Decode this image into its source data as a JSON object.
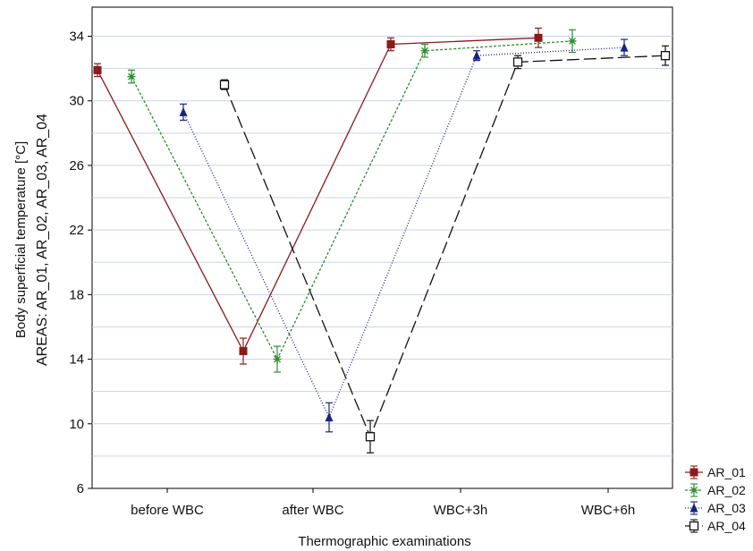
{
  "chart_data": {
    "type": "line",
    "ylabel_line1": "Body superficial temperature [°C]",
    "ylabel_line2": "AREAS: AR_01, AR_02, AR_03, AR_04",
    "xlabel": "Thermographic examinations",
    "categories": [
      "before WBC",
      "after WBC",
      "WBC+3h",
      "WBC+6h"
    ],
    "yticks": [
      6,
      10,
      14,
      18,
      22,
      26,
      30,
      34
    ],
    "ylim": [
      6,
      35.8
    ],
    "grid": true,
    "legend_position": "bottom-right",
    "series": [
      {
        "name": "AR_01",
        "values": [
          31.9,
          14.5,
          33.5,
          33.9
        ],
        "err": [
          0.4,
          0.8,
          0.4,
          0.6
        ],
        "color": "#8b1a1a",
        "dash": "",
        "marker": "square-filled"
      },
      {
        "name": "AR_02",
        "values": [
          31.5,
          14.0,
          33.1,
          33.7
        ],
        "err": [
          0.4,
          0.8,
          0.4,
          0.7
        ],
        "color": "#2e8b2e",
        "dash": "3,2",
        "marker": "star"
      },
      {
        "name": "AR_03",
        "values": [
          29.3,
          10.4,
          32.8,
          33.3
        ],
        "err": [
          0.5,
          0.9,
          0.3,
          0.5
        ],
        "color": "#1a237e",
        "dash": "1,2",
        "marker": "triangle-filled"
      },
      {
        "name": "AR_04",
        "values": [
          31.0,
          9.2,
          32.4,
          32.8
        ],
        "err": [
          0.3,
          1.0,
          0.4,
          0.6
        ],
        "color": "#111111",
        "dash": "14,5",
        "marker": "square-open"
      }
    ]
  }
}
